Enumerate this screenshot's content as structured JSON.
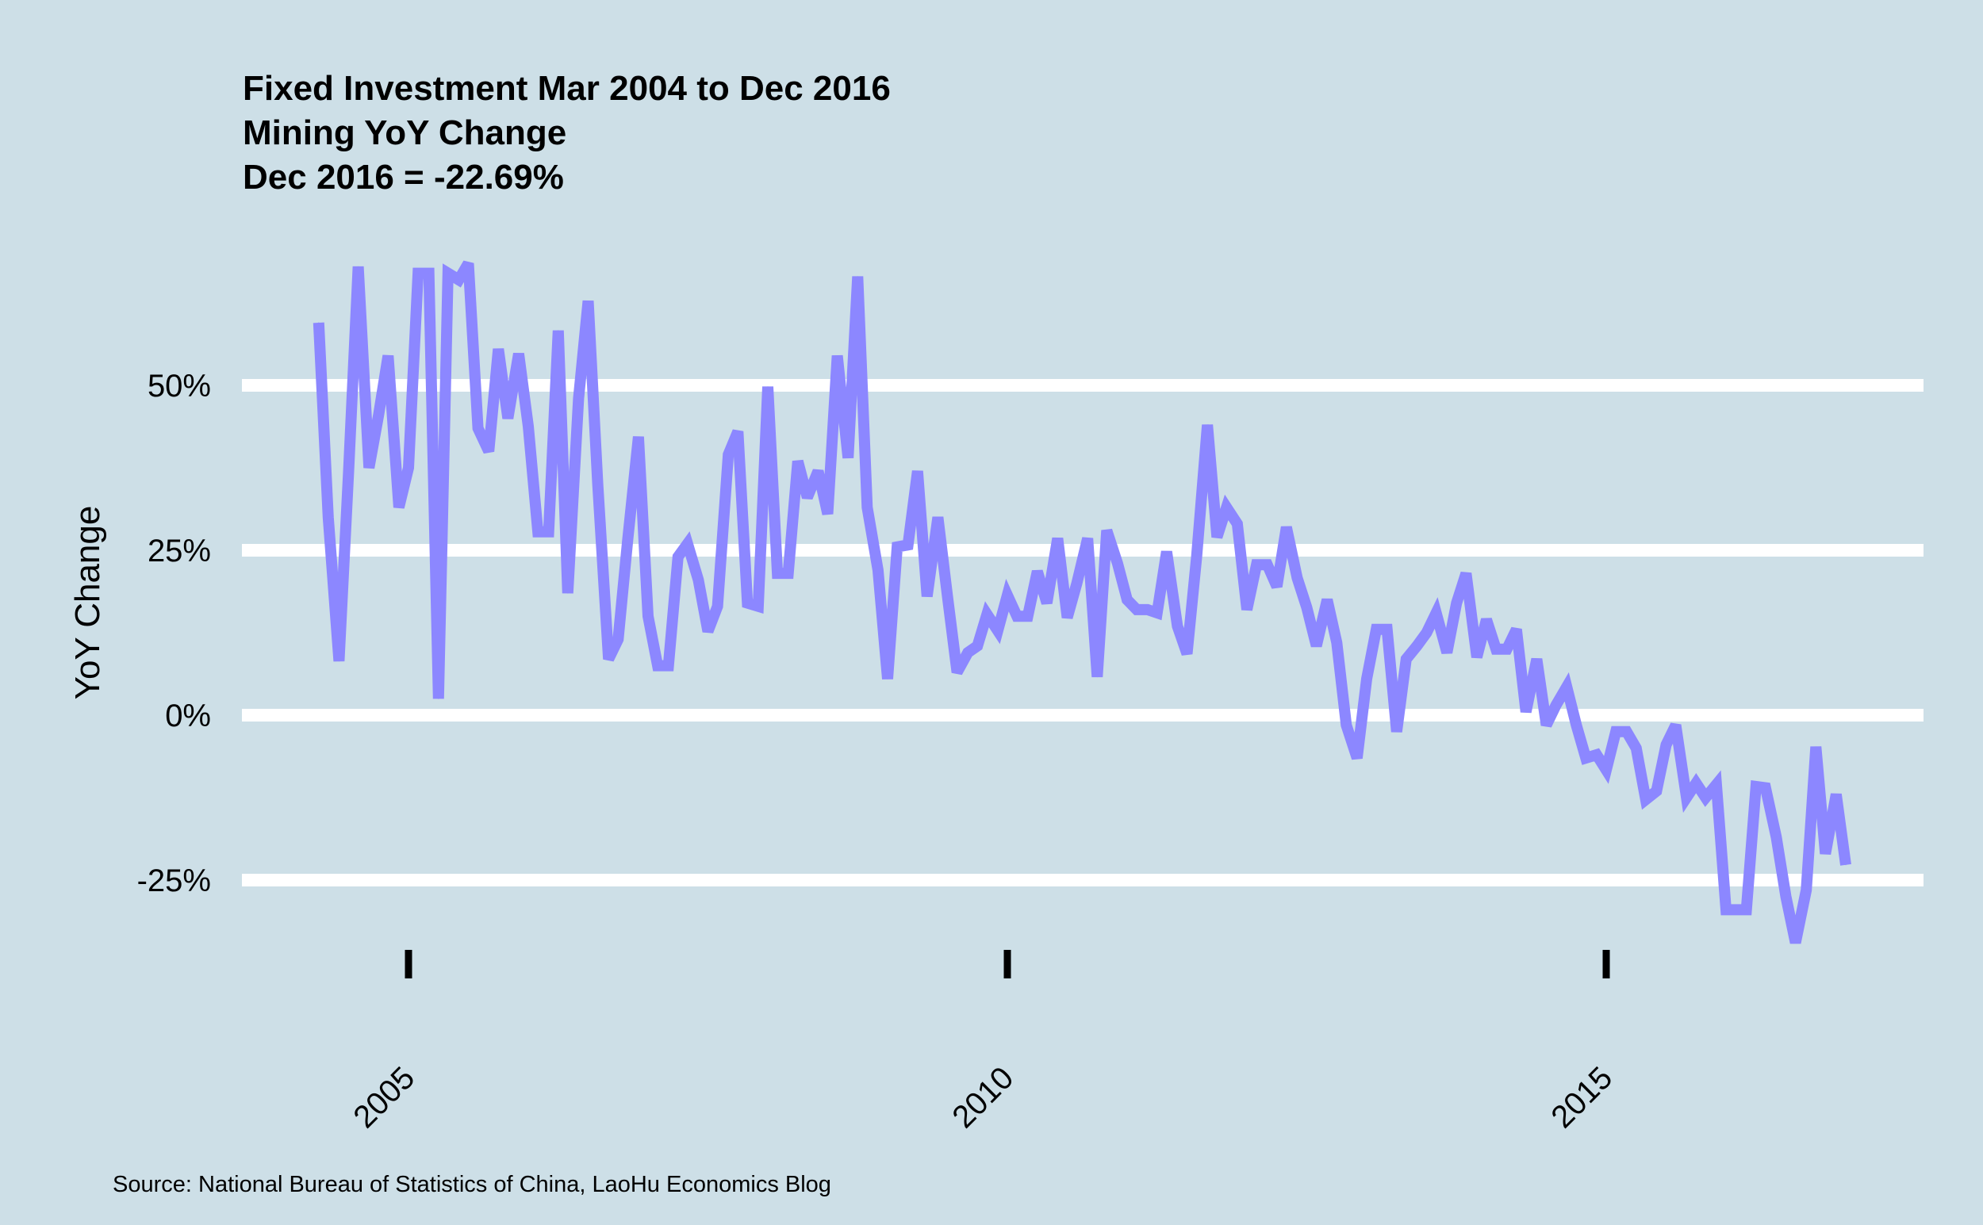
{
  "chart_data": {
    "type": "line",
    "title_lines": [
      "Fixed Investment Mar 2004 to Dec 2016",
      "Mining YoY Change",
      "Dec 2016 = -22.69%"
    ],
    "xlabel": "",
    "ylabel": "YoY Change",
    "source": "Source: National Bureau of Statistics of China, LaoHu Economics Blog",
    "y_ticks": [
      {
        "value": 50,
        "label": "50%"
      },
      {
        "value": 25,
        "label": "25%"
      },
      {
        "value": 0,
        "label": "0%"
      },
      {
        "value": -25,
        "label": "-25%"
      }
    ],
    "x_ticks": [
      {
        "value": 2005,
        "label": "2005"
      },
      {
        "value": 2010,
        "label": "2010"
      },
      {
        "value": 2015,
        "label": "2015"
      }
    ],
    "ylim": [
      -36,
      68
    ],
    "xlim": [
      2003.7,
      2017.2
    ],
    "grid": true,
    "legend": "none",
    "line_color": "#8c87ff",
    "gridline_color": "#ffffff",
    "background_color": "#cddfe7",
    "series": [
      {
        "x": [
          2004.25,
          2004.33,
          2004.42,
          2004.5,
          2004.58,
          2004.67,
          2004.75,
          2004.83,
          2004.92,
          2005.0,
          2005.08,
          2005.17,
          2005.25,
          2005.33,
          2005.42,
          2005.5,
          2005.58,
          2005.67,
          2005.75,
          2005.83,
          2005.92,
          2006.0,
          2006.08,
          2006.17,
          2006.25,
          2006.33,
          2006.42,
          2006.5,
          2006.58,
          2006.67,
          2006.75,
          2006.83,
          2006.92,
          2007.0,
          2007.08,
          2007.17,
          2007.25,
          2007.33,
          2007.42,
          2007.5,
          2007.58,
          2007.67,
          2007.75,
          2007.83,
          2007.92,
          2008.0,
          2008.08,
          2008.17,
          2008.25,
          2008.33,
          2008.42,
          2008.5,
          2008.58,
          2008.67,
          2008.75,
          2008.83,
          2008.92,
          2009.0,
          2009.08,
          2009.17,
          2009.25,
          2009.33,
          2009.42,
          2009.5,
          2009.58,
          2009.67,
          2009.75,
          2009.83,
          2009.92,
          2010.0,
          2010.08,
          2010.17,
          2010.25,
          2010.33,
          2010.42,
          2010.5,
          2010.58,
          2010.67,
          2010.75,
          2010.83,
          2010.92,
          2011.0,
          2011.08,
          2011.17,
          2011.25,
          2011.33,
          2011.42,
          2011.5,
          2011.58,
          2011.67,
          2011.75,
          2011.83,
          2011.92,
          2012.0,
          2012.08,
          2012.17,
          2012.25,
          2012.33,
          2012.42,
          2012.5,
          2012.58,
          2012.67,
          2012.75,
          2012.83,
          2012.92,
          2013.0,
          2013.08,
          2013.17,
          2013.25,
          2013.33,
          2013.42,
          2013.5,
          2013.58,
          2013.67,
          2013.75,
          2013.83,
          2013.92,
          2014.0,
          2014.08,
          2014.17,
          2014.25,
          2014.33,
          2014.42,
          2014.5,
          2014.58,
          2014.67,
          2014.75,
          2014.83,
          2014.92,
          2015.0,
          2015.08,
          2015.17,
          2015.25,
          2015.33,
          2015.42,
          2015.5,
          2015.58,
          2015.67,
          2015.75,
          2015.83,
          2015.92,
          2016.0,
          2016.08,
          2016.17,
          2016.25,
          2016.33,
          2016.42,
          2016.5,
          2016.58,
          2016.67,
          2016.75,
          2016.83,
          2016.92,
          2017.0
        ],
        "values": [
          59.5,
          30.0,
          8.2,
          37.0,
          68.0,
          37.5,
          45.5,
          54.5,
          31.5,
          37.5,
          67.0,
          67.0,
          2.5,
          67.0,
          66.0,
          68.5,
          43.5,
          40.0,
          55.5,
          45.0,
          54.8,
          43.8,
          27.8,
          27.8,
          58.3,
          18.5,
          48.0,
          62.8,
          35.0,
          8.5,
          11.5,
          26.5,
          42.2,
          15.0,
          7.5,
          7.5,
          24.0,
          26.0,
          20.5,
          12.7,
          16.5,
          39.5,
          43.0,
          17.0,
          16.5,
          49.8,
          21.5,
          21.5,
          38.5,
          33.0,
          37.0,
          30.5,
          54.5,
          39.0,
          66.5,
          31.5,
          22.0,
          5.5,
          25.5,
          25.8,
          37.0,
          18.0,
          30.0,
          18.0,
          6.5,
          9.5,
          10.5,
          15.3,
          12.8,
          18.2,
          15.0,
          15.0,
          21.8,
          17.0,
          26.8,
          14.8,
          20.0,
          26.8,
          5.8,
          28.0,
          23.0,
          17.5,
          16.0,
          16.0,
          15.5,
          24.8,
          13.5,
          9.3,
          24.0,
          44.0,
          27.0,
          31.5,
          29.0,
          16.0,
          22.8,
          22.8,
          19.5,
          28.5,
          20.8,
          16.3,
          10.5,
          17.5,
          11.0,
          -1.5,
          -6.5,
          5.5,
          13.0,
          13.0,
          -2.5,
          8.5,
          10.5,
          12.5,
          15.5,
          9.5,
          17.0,
          21.5,
          8.8,
          14.5,
          10.0,
          10.0,
          13.0,
          0.5,
          8.5,
          -1.5,
          1.5,
          4.3,
          -1.5,
          -6.5,
          -6.0,
          -8.3,
          -2.5,
          -2.5,
          -5.0,
          -12.8,
          -11.5,
          -4.5,
          -1.5,
          -12.5,
          -10.3,
          -12.5,
          -10.5,
          -29.5,
          -29.5,
          -29.5,
          -10.8,
          -11.0,
          -18.5,
          -27.5,
          -34.5,
          -26.5,
          -4.8,
          -21.0,
          -12.0,
          -22.69
        ]
      }
    ]
  }
}
